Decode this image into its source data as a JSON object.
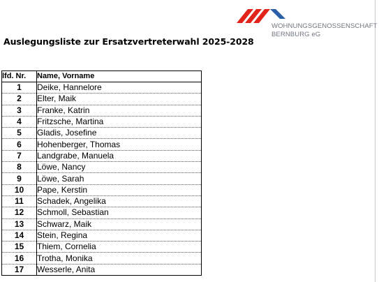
{
  "logo": {
    "line1": "WOHNUNGSGENOSSENSCHAFT",
    "line2": "BERNBURG eG",
    "colors": {
      "red": "#e2231a",
      "blue": "#2b5fa8",
      "text": "#6f7680"
    }
  },
  "title": "Auslegungsliste zur Ersatzvertreterwahl 2025-2028",
  "table": {
    "headers": {
      "nr": "lfd. Nr.",
      "name": "Name, Vorname"
    },
    "rows": [
      {
        "nr": "1",
        "name": "Deike, Hannelore"
      },
      {
        "nr": "2",
        "name": "Elter, Maik"
      },
      {
        "nr": "3",
        "name": "Franke, Katrin"
      },
      {
        "nr": "4",
        "name": "Fritzsche, Martina"
      },
      {
        "nr": "5",
        "name": "Gladis, Josefine"
      },
      {
        "nr": "6",
        "name": "Hohenberger, Thomas"
      },
      {
        "nr": "7",
        "name": "Landgrabe, Manuela"
      },
      {
        "nr": "8",
        "name": "Löwe, Nancy"
      },
      {
        "nr": "9",
        "name": "Löwe, Sarah"
      },
      {
        "nr": "10",
        "name": "Pape, Kerstin"
      },
      {
        "nr": "11",
        "name": "Schadek, Angelika"
      },
      {
        "nr": "12",
        "name": "Schmoll, Sebastian"
      },
      {
        "nr": "13",
        "name": "Schwarz, Maik"
      },
      {
        "nr": "14",
        "name": "Stein, Regina"
      },
      {
        "nr": "15",
        "name": "Thiem, Cornelia"
      },
      {
        "nr": "16",
        "name": "Trotha, Monika"
      },
      {
        "nr": "17",
        "name": "Wesserle, Anita"
      }
    ]
  }
}
